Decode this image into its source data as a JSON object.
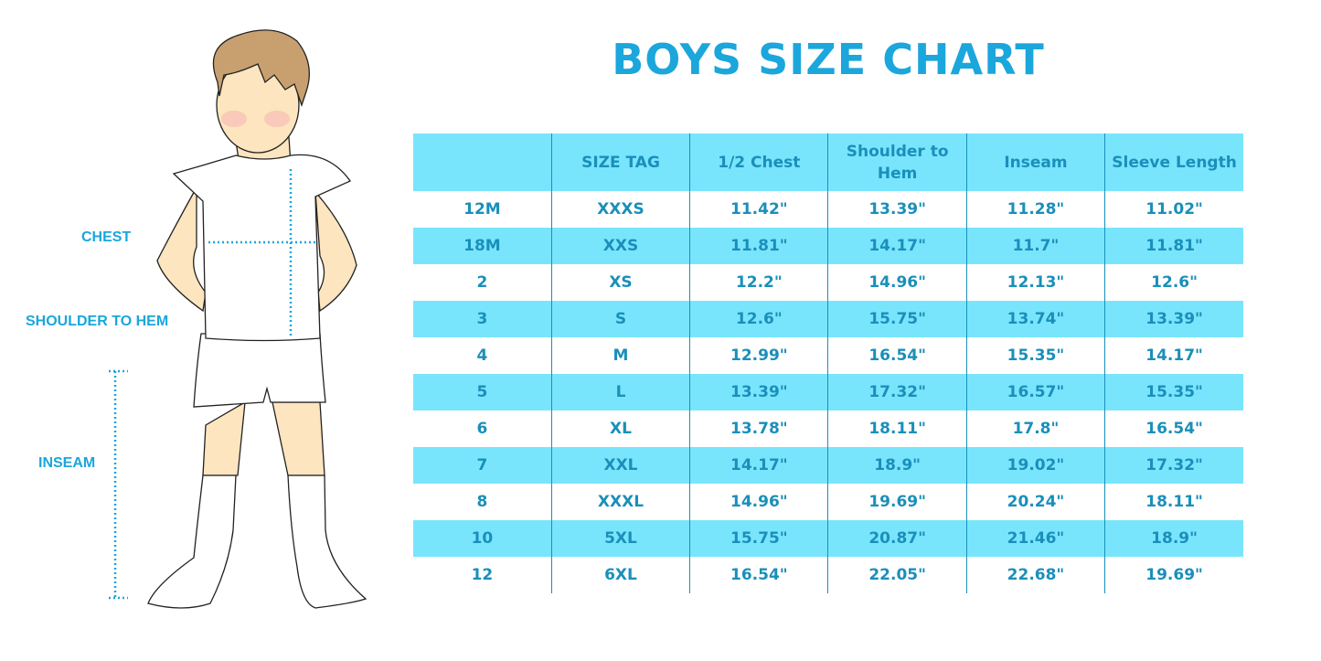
{
  "title": "BOYS SIZE CHART",
  "figure_labels": {
    "chest": "CHEST",
    "shoulder_to_hem": "SHOULDER TO HEM",
    "inseam": "INSEAM"
  },
  "colors": {
    "title": "#1ba6dc",
    "header_bg": "#79e5fd",
    "text": "#1a8fba"
  },
  "chart_data": {
    "type": "table",
    "title": "BOYS SIZE CHART",
    "columns": [
      "",
      "SIZE TAG",
      "1/2 Chest",
      "Shoulder to Hem",
      "Inseam",
      "Sleeve Length"
    ],
    "rows": [
      [
        "12M",
        "XXXS",
        "11.42\"",
        "13.39\"",
        "11.28\"",
        "11.02\""
      ],
      [
        "18M",
        "XXS",
        "11.81\"",
        "14.17\"",
        "11.7\"",
        "11.81\""
      ],
      [
        "2",
        "XS",
        "12.2\"",
        "14.96\"",
        "12.13\"",
        "12.6\""
      ],
      [
        "3",
        "S",
        "12.6\"",
        "15.75\"",
        "13.74\"",
        "13.39\""
      ],
      [
        "4",
        "M",
        "12.99\"",
        "16.54\"",
        "15.35\"",
        "14.17\""
      ],
      [
        "5",
        "L",
        "13.39\"",
        "17.32\"",
        "16.57\"",
        "15.35\""
      ],
      [
        "6",
        "XL",
        "13.78\"",
        "18.11\"",
        "17.8\"",
        "16.54\""
      ],
      [
        "7",
        "XXL",
        "14.17\"",
        "18.9\"",
        "19.02\"",
        "17.32\""
      ],
      [
        "8",
        "XXXL",
        "14.96\"",
        "19.69\"",
        "20.24\"",
        "18.11\""
      ],
      [
        "10",
        "5XL",
        "15.75\"",
        "20.87\"",
        "21.46\"",
        "18.9\""
      ],
      [
        "12",
        "6XL",
        "16.54\"",
        "22.05\"",
        "22.68\"",
        "19.69\""
      ]
    ]
  }
}
